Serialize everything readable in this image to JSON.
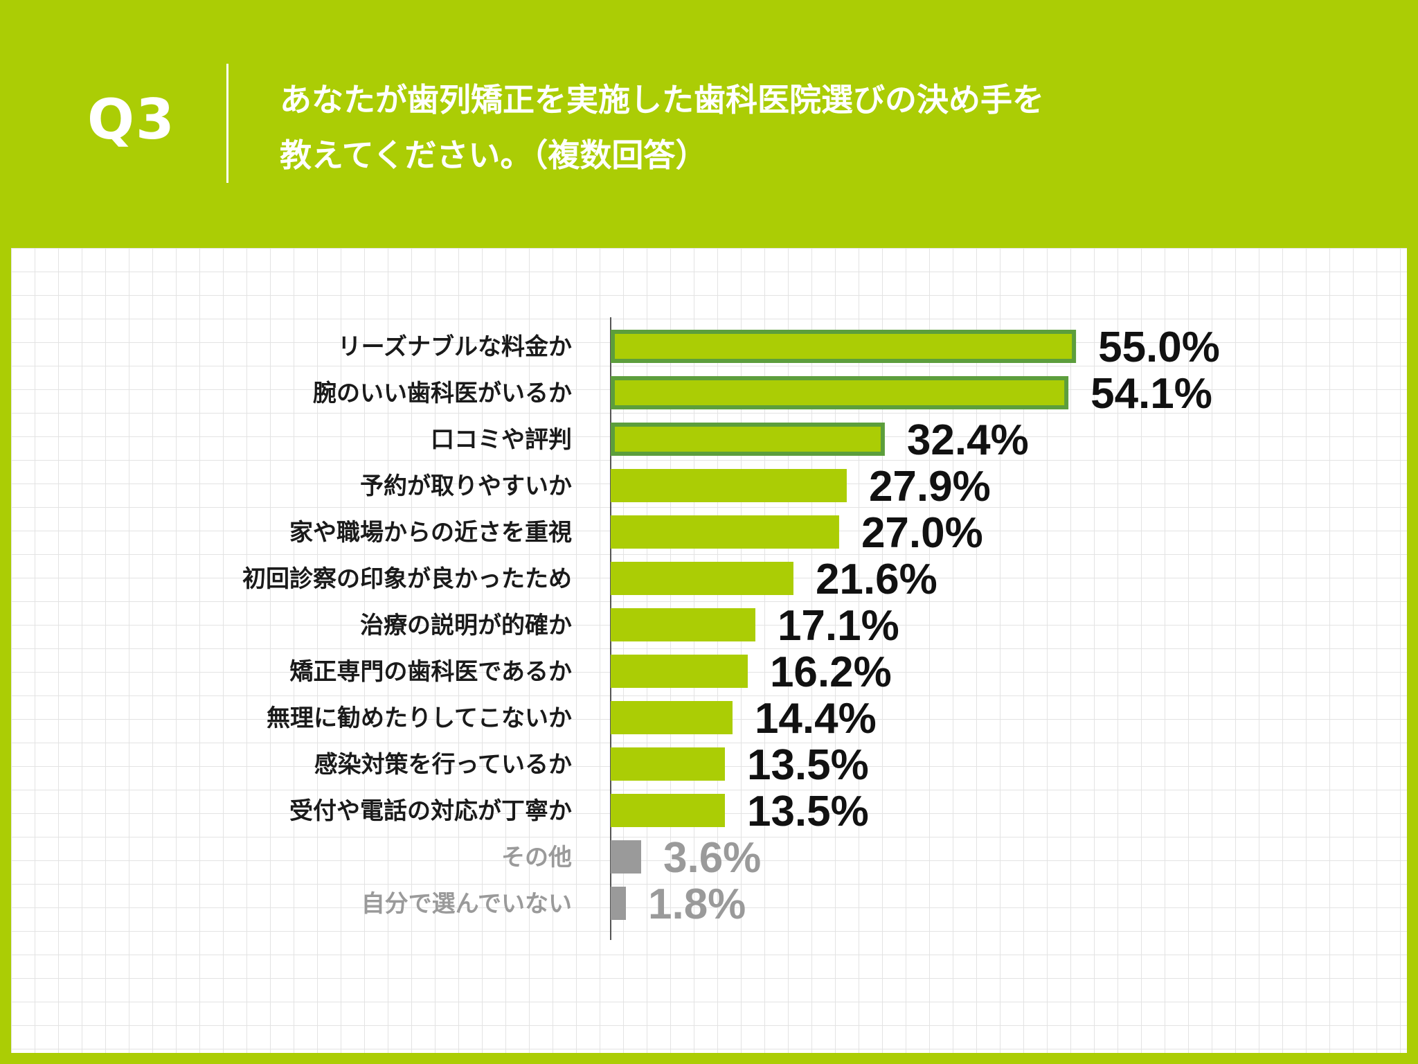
{
  "header": {
    "q_label": "Q3",
    "question_line1": "あなたが歯列矯正を実施した歯科医院選びの決め手を",
    "question_line2": "教えてください。（複数回答）"
  },
  "colors": {
    "background": "#abcd05",
    "bar": "#abcd05",
    "bar_top_outline": "#5c9e3c",
    "bar_minor": "#9a9a9a",
    "label": "#1a1a1a",
    "label_minor": "#9a9a9a"
  },
  "chart_data": {
    "type": "bar",
    "orientation": "horizontal",
    "categories": [
      "リーズナブルな料金か",
      "腕のいい歯科医がいるか",
      "口コミや評判",
      "予約が取りやすいか",
      "家や職場からの近さを重視",
      "初回診察の印象が良かったため",
      "治療の説明が的確か",
      "矯正専門の歯科医であるか",
      "無理に勧めたりしてこないか",
      "感染対策を行っているか",
      "受付や電話の対応が丁寧か",
      "その他",
      "自分で選んでいない"
    ],
    "values": [
      55.0,
      54.1,
      32.4,
      27.9,
      27.0,
      21.6,
      17.1,
      16.2,
      14.4,
      13.5,
      13.5,
      3.6,
      1.8
    ],
    "value_labels": [
      "55.0%",
      "54.1%",
      "32.4%",
      "27.9%",
      "27.0%",
      "21.6%",
      "17.1%",
      "16.2%",
      "14.4%",
      "13.5%",
      "13.5%",
      "3.6%",
      "1.8%"
    ],
    "highlighted": [
      true,
      true,
      true,
      false,
      false,
      false,
      false,
      false,
      false,
      false,
      false,
      false,
      false
    ],
    "minor": [
      false,
      false,
      false,
      false,
      false,
      false,
      false,
      false,
      false,
      false,
      false,
      true,
      true
    ],
    "unit": "%",
    "xlim": [
      0,
      60
    ],
    "grid": true
  }
}
